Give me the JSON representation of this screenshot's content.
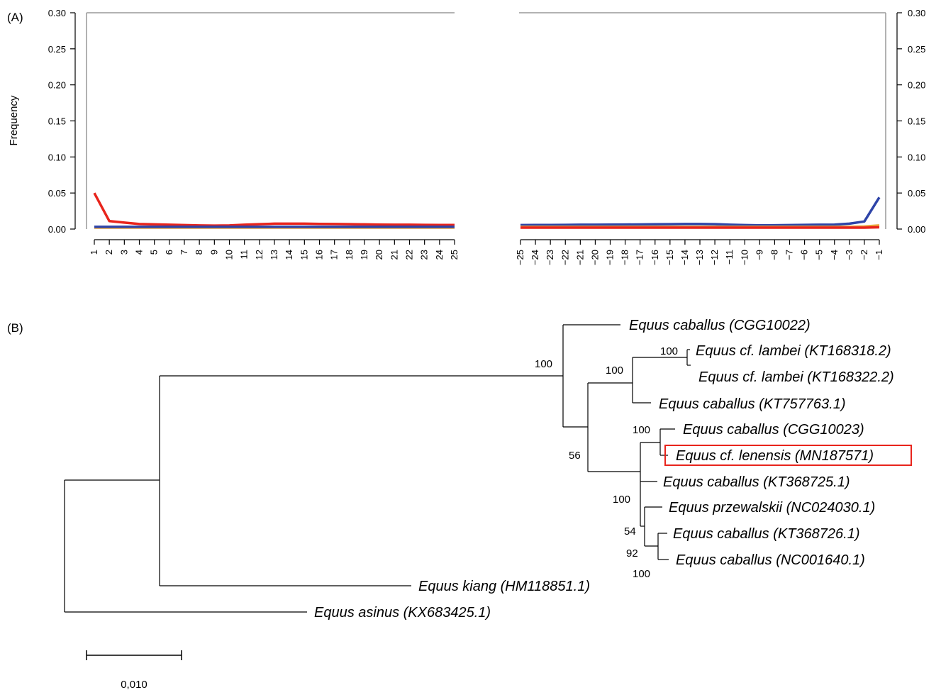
{
  "panel_a_label": "(A)",
  "panel_b_label": "(B)",
  "chart_data": [
    {
      "type": "line",
      "panel": "A-left",
      "ylabel": "Frequency",
      "ylim": [
        0,
        0.3
      ],
      "yticks": [
        "0.00",
        "0.05",
        "0.10",
        "0.15",
        "0.20",
        "0.25",
        "0.30"
      ],
      "x": [
        "1",
        "2",
        "3",
        "4",
        "5",
        "6",
        "7",
        "8",
        "9",
        "10",
        "11",
        "12",
        "13",
        "14",
        "15",
        "16",
        "17",
        "18",
        "19",
        "20",
        "21",
        "22",
        "23",
        "24",
        "25"
      ],
      "series": [
        {
          "color": "#e8241c",
          "values": [
            0.05,
            0.011,
            0.009,
            0.007,
            0.0065,
            0.006,
            0.0055,
            0.005,
            0.0048,
            0.005,
            0.006,
            0.0068,
            0.0075,
            0.0075,
            0.0075,
            0.0072,
            0.007,
            0.0068,
            0.0065,
            0.0062,
            0.006,
            0.006,
            0.0058,
            0.0057,
            0.0056
          ]
        },
        {
          "color": "#e8a33a",
          "values": [
            0.002,
            0.002,
            0.002,
            0.002,
            0.002,
            0.002,
            0.002,
            0.002,
            0.002,
            0.002,
            0.002,
            0.002,
            0.002,
            0.002,
            0.002,
            0.002,
            0.002,
            0.002,
            0.002,
            0.002,
            0.002,
            0.002,
            0.002,
            0.002,
            0.002
          ]
        },
        {
          "color": "#2e44a8",
          "values": [
            0.003,
            0.003,
            0.003,
            0.003,
            0.003,
            0.003,
            0.003,
            0.003,
            0.003,
            0.003,
            0.003,
            0.003,
            0.003,
            0.003,
            0.003,
            0.003,
            0.003,
            0.003,
            0.003,
            0.003,
            0.003,
            0.003,
            0.003,
            0.003,
            0.003
          ]
        }
      ]
    },
    {
      "type": "line",
      "panel": "A-right",
      "ylim": [
        0,
        0.3
      ],
      "yticks": [
        "0.00",
        "0.05",
        "0.10",
        "0.15",
        "0.20",
        "0.25",
        "0.30"
      ],
      "x": [
        "-25",
        "-24",
        "-23",
        "-22",
        "-21",
        "-20",
        "-19",
        "-18",
        "-17",
        "-16",
        "-15",
        "-14",
        "-13",
        "-12",
        "-11",
        "-10",
        "-9",
        "-8",
        "-7",
        "-6",
        "-5",
        "-4",
        "-3",
        "-2",
        "-1"
      ],
      "series": [
        {
          "color": "#2e44a8",
          "values": [
            0.0055,
            0.0056,
            0.0057,
            0.0058,
            0.006,
            0.006,
            0.0062,
            0.0063,
            0.0064,
            0.0066,
            0.0068,
            0.007,
            0.007,
            0.0068,
            0.006,
            0.0055,
            0.0052,
            0.0053,
            0.0055,
            0.0058,
            0.006,
            0.0062,
            0.0075,
            0.0105,
            0.044
          ]
        },
        {
          "color": "#e8a33a",
          "values": [
            0.003,
            0.003,
            0.003,
            0.003,
            0.003,
            0.003,
            0.003,
            0.003,
            0.003,
            0.003,
            0.003,
            0.003,
            0.003,
            0.003,
            0.003,
            0.003,
            0.003,
            0.003,
            0.003,
            0.003,
            0.003,
            0.003,
            0.003,
            0.0035,
            0.005
          ]
        },
        {
          "color": "#e8241c",
          "values": [
            0.002,
            0.002,
            0.002,
            0.002,
            0.002,
            0.002,
            0.002,
            0.002,
            0.002,
            0.002,
            0.002,
            0.002,
            0.002,
            0.002,
            0.002,
            0.002,
            0.002,
            0.002,
            0.002,
            0.002,
            0.002,
            0.002,
            0.002,
            0.002,
            0.0025
          ]
        }
      ]
    }
  ],
  "tree": {
    "taxa": [
      "Equus caballus (CGG10022)",
      "Equus cf. lambei (KT168318.2)",
      "Equus cf. lambei (KT168322.2)",
      "Equus caballus (KT757763.1)",
      "Equus caballus (CGG10023)",
      "Equus cf. lenensis (MN187571)",
      "Equus caballus (KT368725.1)",
      "Equus przewalskii (NC024030.1)",
      "Equus caballus (KT368726.1)",
      "Equus caballus (NC001640.1)",
      "Equus kiang (HM118851.1)",
      "Equus asinus (KX683425.1)"
    ],
    "supports": [
      "100",
      "100",
      "100",
      "56",
      "100",
      "100",
      "54",
      "92",
      "100"
    ],
    "scale_label": "0,010",
    "highlight_color": "#e8241c"
  }
}
